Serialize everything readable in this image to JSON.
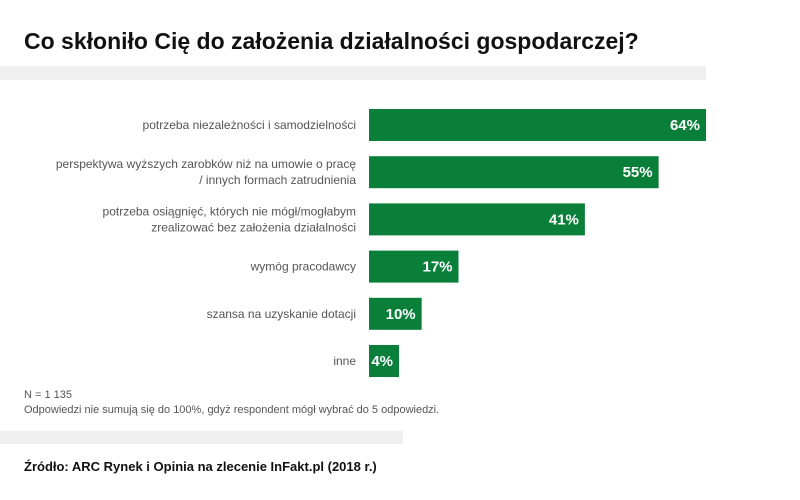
{
  "chart_data": {
    "type": "bar",
    "orientation": "horizontal",
    "title": "Co skłoniło Cię do założenia działalności gospodarczej?",
    "categories": [
      [
        "potrzeba niezależności i samodzielności"
      ],
      [
        "perspektywa wyższych zarobków niż na umowie o pracę",
        "/ innych formach zatrudnienia"
      ],
      [
        "potrzeba osiągnięć, których nie mógł/mogłabym",
        "zrealizować bez założenia działalności"
      ],
      [
        "wymóg pracodawcy"
      ],
      [
        "szansa na uzyskanie dotacji"
      ],
      [
        "inne"
      ]
    ],
    "values": [
      64,
      55,
      41,
      17,
      10,
      4
    ],
    "value_labels": [
      "64%",
      "55%",
      "41%",
      "17%",
      "10%",
      "4%"
    ],
    "xlim": [
      0,
      64
    ],
    "unit": "%",
    "bar_color": "#0a7f3a",
    "grid": false,
    "legend": "none"
  },
  "notes": {
    "n": "N = 1 135",
    "sum": "Odpowiedzi nie sumują się do 100%, gdyż respondent mógł wybrać do 5 odpowiedzi."
  },
  "source": "Źródło: ARC Rynek i Opinia na zlecenie InFakt.pl (2018 r.)"
}
